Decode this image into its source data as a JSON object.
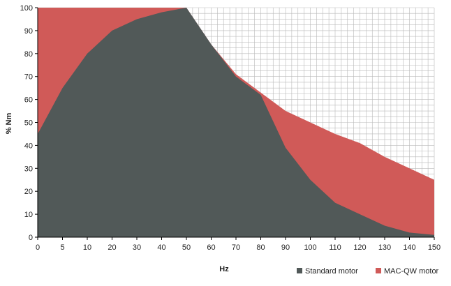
{
  "chart_data": {
    "type": "area",
    "xlabel": "Hz",
    "ylabel": "% Nm",
    "x": [
      0,
      5,
      10,
      20,
      30,
      40,
      50,
      60,
      70,
      80,
      90,
      100,
      110,
      120,
      130,
      140,
      150
    ],
    "x_ticks": [
      0,
      5,
      10,
      20,
      30,
      40,
      50,
      60,
      70,
      80,
      90,
      100,
      110,
      120,
      130,
      140,
      150
    ],
    "ylim": [
      0,
      100
    ],
    "y_ticks": [
      0,
      10,
      20,
      30,
      40,
      50,
      60,
      70,
      80,
      90,
      100
    ],
    "grid": true,
    "legend_position": "bottom-right",
    "series": [
      {
        "name": "MAC-QW motor",
        "color": "#d05a58",
        "values": [
          100,
          100,
          100,
          100,
          100,
          100,
          100,
          84,
          71,
          63,
          55,
          50,
          45,
          41,
          35,
          30,
          25
        ]
      },
      {
        "name": "Standard motor",
        "color": "#515958",
        "values": [
          45,
          65,
          80,
          90,
          95,
          98,
          100,
          84,
          70,
          62,
          39,
          25,
          15,
          10,
          5,
          2,
          1
        ]
      }
    ]
  }
}
